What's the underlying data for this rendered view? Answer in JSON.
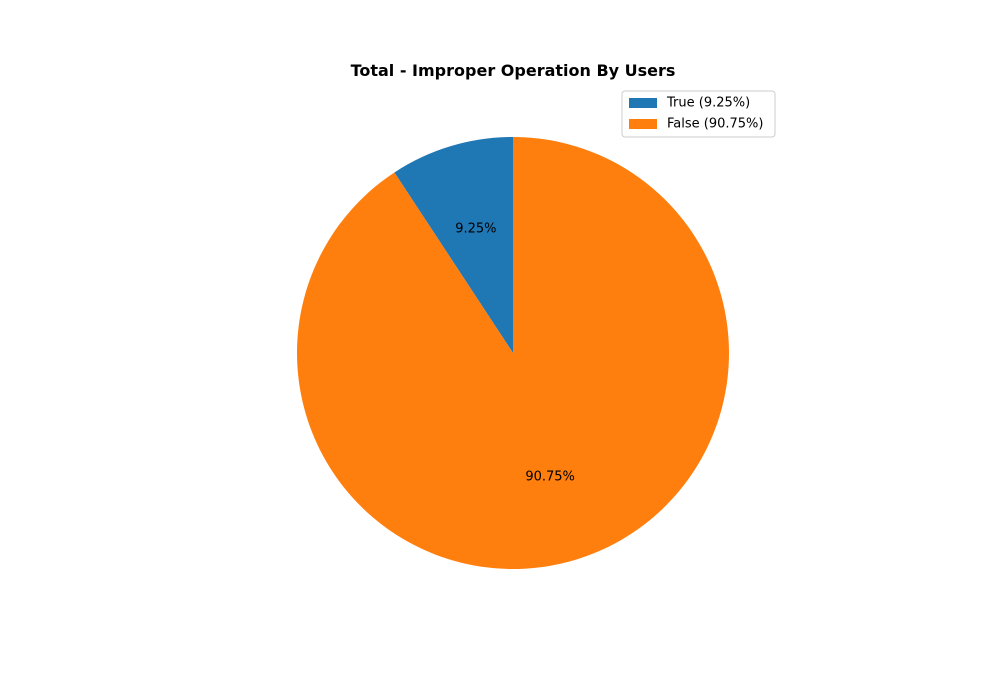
{
  "chart_data": {
    "type": "pie",
    "title": "Total - Improper Operation By Users",
    "labels": [
      "True",
      "False"
    ],
    "values": [
      9.25,
      90.75
    ],
    "slice_labels": [
      "9.25%",
      "90.75%"
    ],
    "legend_entries": [
      "True (9.25%)",
      "False (90.75%)"
    ],
    "colors": [
      "#1f77b4",
      "#ff7f0e"
    ],
    "start_angle_deg": 90,
    "direction": "counterclockwise",
    "legend_position": "upper-right"
  }
}
